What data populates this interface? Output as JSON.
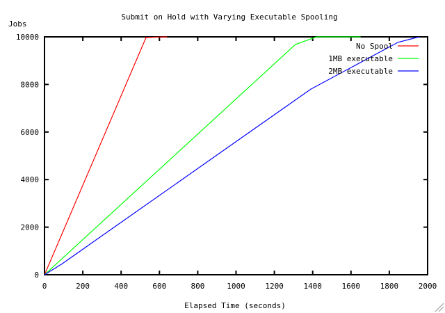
{
  "chart_data": {
    "type": "line",
    "title": "Submit on Hold with Varying Executable Spooling",
    "xlabel": "Elapsed Time (seconds)",
    "ylabel": "Jobs",
    "xlim": [
      0,
      2000
    ],
    "ylim": [
      0,
      10000
    ],
    "xticks": [
      0,
      200,
      400,
      600,
      800,
      1000,
      1200,
      1400,
      1600,
      1800,
      2000
    ],
    "yticks": [
      0,
      2000,
      4000,
      6000,
      8000,
      10000
    ],
    "grid": false,
    "legend_position": "top-right",
    "series": [
      {
        "name": "No Spool",
        "color": "#ff0000",
        "x": [
          0,
          530,
          590,
          640
        ],
        "y": [
          0,
          9970,
          9990,
          10000
        ]
      },
      {
        "name": "1MB executable",
        "color": "#00ff00",
        "x": [
          0,
          1310,
          1420,
          1650
        ],
        "y": [
          0,
          9680,
          10000,
          10000
        ]
      },
      {
        "name": "2MB executable",
        "color": "#0000ff",
        "x": [
          0,
          90,
          1390,
          1845,
          1955
        ],
        "y": [
          0,
          450,
          7800,
          9770,
          10000
        ]
      }
    ]
  }
}
